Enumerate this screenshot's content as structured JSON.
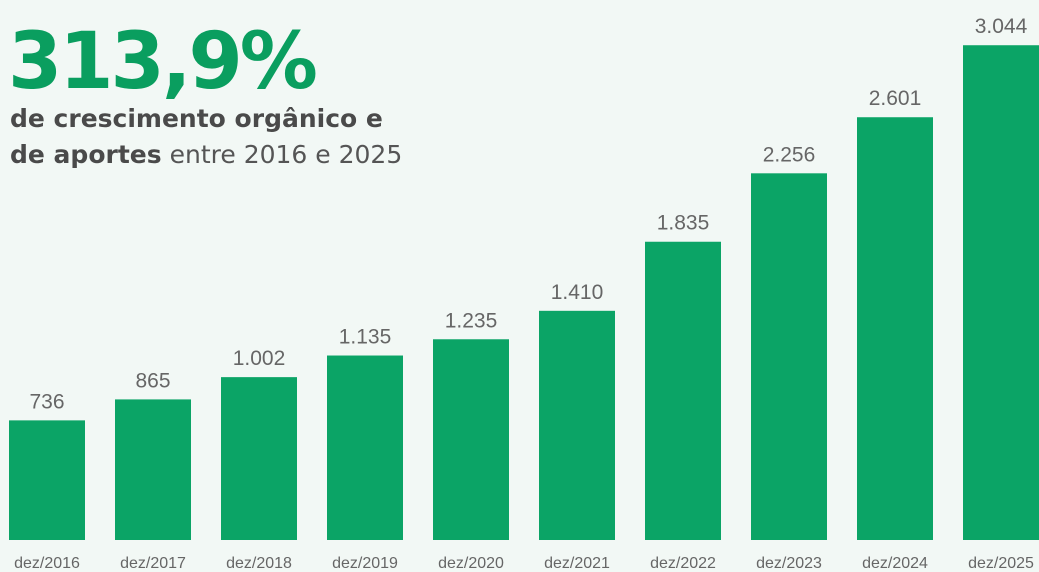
{
  "chart_data": {
    "type": "bar",
    "title": "313,9%",
    "subtitle": {
      "bold": [
        "de crescimento orgânico e",
        "de aportes"
      ],
      "regular": "entre 2016 e 2025"
    },
    "categories": [
      "dez/2016",
      "dez/2017",
      "dez/2018",
      "dez/2019",
      "dez/2020",
      "dez/2021",
      "dez/2022",
      "dez/2023",
      "dez/2024",
      "dez/2025"
    ],
    "values": [
      736,
      865,
      1002,
      1135,
      1235,
      1410,
      1835,
      2256,
      2601,
      3044
    ],
    "value_labels": [
      "736",
      "865",
      "1.002",
      "1.135",
      "1.235",
      "1.410",
      "1.835",
      "2.256",
      "2.601",
      "3.044"
    ],
    "color": "#0ba466",
    "ylim": [
      0,
      3150
    ]
  }
}
